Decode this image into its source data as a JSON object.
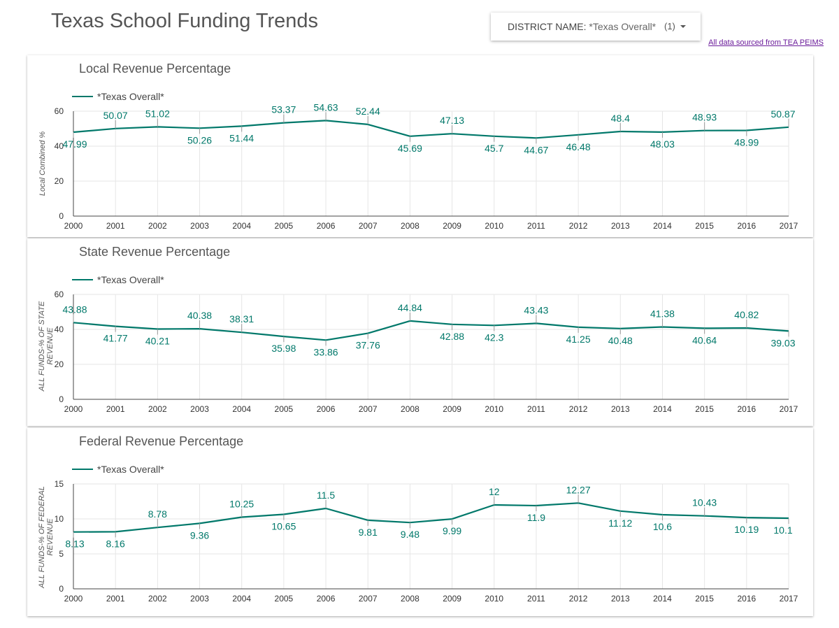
{
  "page": {
    "title": "Texas School Funding Trends",
    "source_link": "All data sourced from TEA PEIMS"
  },
  "filter": {
    "label": "DISTRICT NAME",
    "value": "*Texas Overall*",
    "count": "(1)",
    "icon": "caret-down-icon"
  },
  "colors": {
    "line": "#00786a",
    "label": "#00786a",
    "grid": "#e6e6e6",
    "axis": "#444444"
  },
  "chart_data": [
    {
      "type": "line",
      "title": "Local Revenue Percentage",
      "ylabel": "Local Combined %",
      "xlabel": "",
      "ylim": [
        0,
        60
      ],
      "yticks": [
        0,
        20,
        40,
        60
      ],
      "grid": true,
      "legend": "top-left",
      "categories": [
        "2000",
        "2001",
        "2002",
        "2003",
        "2004",
        "2005",
        "2006",
        "2007",
        "2008",
        "2009",
        "2010",
        "2011",
        "2012",
        "2013",
        "2014",
        "2015",
        "2016",
        "2017"
      ],
      "series": [
        {
          "name": "*Texas Overall*",
          "values": [
            47.99,
            50.07,
            51.02,
            50.26,
            51.44,
            53.37,
            54.63,
            52.44,
            45.69,
            47.13,
            45.7,
            44.67,
            46.48,
            48.4,
            48.03,
            48.93,
            48.99,
            50.87
          ]
        }
      ]
    },
    {
      "type": "line",
      "title": "State Revenue Percentage",
      "ylabel": "ALL FUNDS-% OF STATE REVENUE",
      "xlabel": "",
      "ylim": [
        0,
        60
      ],
      "yticks": [
        0,
        20,
        40,
        60
      ],
      "grid": true,
      "legend": "top-left",
      "categories": [
        "2000",
        "2001",
        "2002",
        "2003",
        "2004",
        "2005",
        "2006",
        "2007",
        "2008",
        "2009",
        "2010",
        "2011",
        "2012",
        "2013",
        "2014",
        "2015",
        "2016",
        "2017"
      ],
      "series": [
        {
          "name": "*Texas Overall*",
          "values": [
            43.88,
            41.77,
            40.21,
            40.38,
            38.31,
            35.98,
            33.86,
            37.76,
            44.84,
            42.88,
            42.3,
            43.43,
            41.25,
            40.48,
            41.38,
            40.64,
            40.82,
            39.03
          ]
        }
      ]
    },
    {
      "type": "line",
      "title": "Federal Revenue Percentage",
      "ylabel": "ALL FUNDS-% OF FEDERAL REVENUE",
      "xlabel": "",
      "ylim": [
        0,
        15
      ],
      "yticks": [
        0,
        5,
        10,
        15
      ],
      "grid": true,
      "legend": "top-left",
      "categories": [
        "2000",
        "2001",
        "2002",
        "2003",
        "2004",
        "2005",
        "2006",
        "2007",
        "2008",
        "2009",
        "2010",
        "2011",
        "2012",
        "2013",
        "2014",
        "2015",
        "2016",
        "2017"
      ],
      "series": [
        {
          "name": "*Texas Overall*",
          "values": [
            8.13,
            8.16,
            8.78,
            9.36,
            10.25,
            10.65,
            11.5,
            9.81,
            9.48,
            9.99,
            12,
            11.9,
            12.27,
            11.12,
            10.6,
            10.43,
            10.19,
            10.1
          ]
        }
      ]
    }
  ]
}
